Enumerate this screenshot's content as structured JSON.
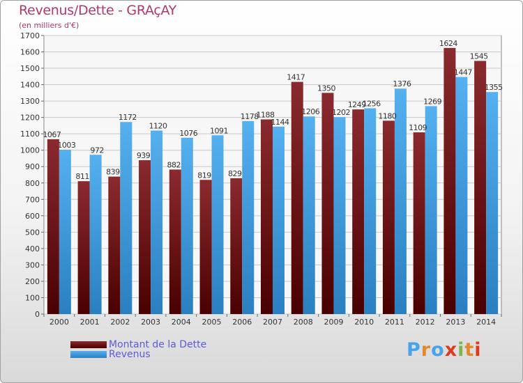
{
  "header": {
    "title": "Revenus/Dette - GRAçAY",
    "subtitle": "(en milliers d'€)"
  },
  "legend": {
    "items": [
      {
        "label": "Montant de la Dette",
        "color": "#6b1212"
      },
      {
        "label": "Revenus",
        "color": "#4aa3e6"
      }
    ]
  },
  "logo": {
    "text": "Proxiti",
    "colors": [
      "#4aa3e6",
      "#e08a2c",
      "#4aa3e6",
      "#e03a1e",
      "#7ab648",
      "#e08a2c",
      "#e03a1e"
    ]
  },
  "chart_data": {
    "type": "bar",
    "categories": [
      "2000",
      "2001",
      "2002",
      "2003",
      "2004",
      "2005",
      "2006",
      "2007",
      "2008",
      "2009",
      "2010",
      "2011",
      "2012",
      "2013",
      "2014"
    ],
    "series": [
      {
        "name": "Montant de la Dette",
        "color": "#7a1a1e",
        "values": [
          1067,
          811,
          839,
          939,
          882,
          819,
          829,
          1188,
          1417,
          1350,
          1249,
          1180,
          1109,
          1624,
          1545
        ]
      },
      {
        "name": "Revenus",
        "color": "#4aa3e6",
        "values": [
          1003,
          972,
          1172,
          1120,
          1076,
          1091,
          1178,
          1144,
          1206,
          1202,
          1256,
          1376,
          1269,
          1447,
          1355
        ]
      }
    ],
    "ylim": [
      0,
      1700
    ],
    "ytick_step": 100,
    "grid": true,
    "legend_position": "bottom-left"
  }
}
